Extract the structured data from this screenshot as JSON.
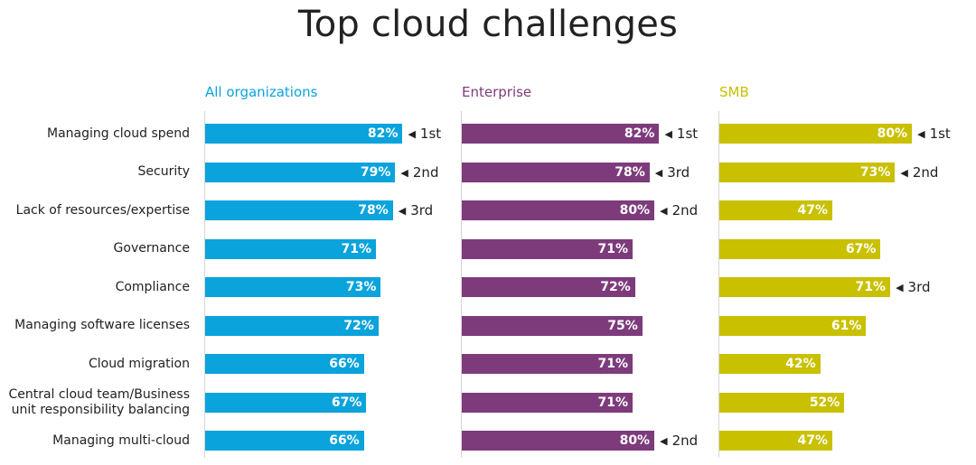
{
  "chart_data": {
    "type": "bar",
    "orientation": "horizontal",
    "title": "Top cloud challenges",
    "categories": [
      "Managing cloud spend",
      "Security",
      "Lack of resources/expertise",
      "Governance",
      "Compliance",
      "Managing software licenses",
      "Cloud migration",
      "Central cloud team/Business unit responsibility balancing",
      "Managing multi-cloud"
    ],
    "category_label_lines": [
      [
        "Managing cloud spend"
      ],
      [
        "Security"
      ],
      [
        "Lack of resources/expertise"
      ],
      [
        "Governance"
      ],
      [
        "Compliance"
      ],
      [
        "Managing software licenses"
      ],
      [
        "Cloud migration"
      ],
      [
        "Central cloud team/Business",
        "unit responsibility balancing"
      ],
      [
        "Managing multi-cloud"
      ]
    ],
    "value_suffix": "%",
    "xlim": [
      0,
      100
    ],
    "grid": false,
    "series": [
      {
        "name": "All organizations",
        "color": "#0aa3dc",
        "values": [
          82,
          79,
          78,
          71,
          73,
          72,
          66,
          67,
          66
        ],
        "ranks": [
          "1st",
          "2nd",
          "3rd",
          "",
          "",
          "",
          "",
          "",
          ""
        ]
      },
      {
        "name": "Enterprise",
        "color": "#7d3b7c",
        "values": [
          82,
          78,
          80,
          71,
          72,
          75,
          71,
          71,
          80
        ],
        "ranks": [
          "1st",
          "3rd",
          "2nd",
          "",
          "",
          "",
          "",
          "",
          "2nd"
        ]
      },
      {
        "name": "SMB",
        "color": "#c9c000",
        "values": [
          80,
          73,
          47,
          67,
          71,
          61,
          42,
          52,
          47
        ],
        "ranks": [
          "1st",
          "2nd",
          "",
          "",
          "3rd",
          "",
          "",
          "",
          ""
        ]
      }
    ]
  }
}
